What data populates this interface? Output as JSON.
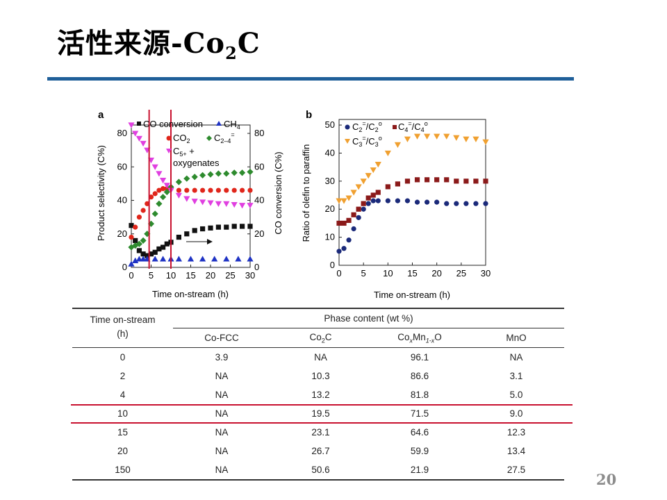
{
  "slide": {
    "title_main": "活性来源-Co",
    "title_sub": "2",
    "title_tail": "C",
    "page_number": "20",
    "rule_color": "#1f5f99",
    "highlight_color": "#c8102e"
  },
  "chart_data": [
    {
      "panel": "a",
      "type": "scatter",
      "xlabel": "Time on-stream (h)",
      "ylabel": "Product selectivity (C%)",
      "ylabel_right": "CO conversion (C%)",
      "xlim": [
        0,
        30
      ],
      "ylim": [
        0,
        85
      ],
      "xticks": [
        0,
        5,
        10,
        15,
        20,
        25,
        30
      ],
      "yticks": [
        0,
        20,
        40,
        60,
        80
      ],
      "vertical_markers": [
        4.5,
        10
      ],
      "legend": [
        "CO conversion",
        "CH4",
        "CO2",
        "C2–4=",
        "C5+ + oxygenates"
      ],
      "series": [
        {
          "name": "CO conversion",
          "color": "#111111",
          "marker": "square",
          "x": [
            0,
            1,
            2,
            3,
            4,
            5,
            6,
            7,
            8,
            9,
            10,
            12,
            14,
            16,
            18,
            20,
            22,
            24,
            26,
            28,
            30
          ],
          "y": [
            25,
            16,
            10,
            8,
            7,
            8,
            9,
            11,
            12,
            14,
            15,
            18,
            20,
            22,
            23,
            23.5,
            24,
            24,
            24.5,
            24.5,
            24.5
          ]
        },
        {
          "name": "CH4",
          "color": "#1f33c4",
          "marker": "triangle-up",
          "x": [
            0,
            1,
            2,
            3,
            4,
            6,
            8,
            10,
            12,
            15,
            18,
            21,
            24,
            27,
            30
          ],
          "y": [
            2,
            4,
            5,
            5,
            5,
            5,
            5,
            5,
            5,
            5,
            5,
            5,
            5,
            5,
            5
          ]
        },
        {
          "name": "CO2",
          "color": "#e0261b",
          "marker": "circle",
          "x": [
            0,
            1,
            2,
            3,
            4,
            5,
            6,
            7,
            8,
            9,
            10,
            12,
            14,
            16,
            18,
            20,
            22,
            24,
            26,
            28,
            30
          ],
          "y": [
            18,
            24,
            30,
            34,
            38,
            42,
            44,
            46,
            47,
            47,
            47,
            46,
            46,
            46,
            46,
            46,
            46,
            46,
            46,
            46,
            46
          ]
        },
        {
          "name": "C2–4=",
          "color": "#2e8b2e",
          "marker": "diamond",
          "x": [
            0,
            1,
            2,
            3,
            4,
            5,
            6,
            7,
            8,
            9,
            10,
            12,
            14,
            16,
            18,
            20,
            22,
            24,
            26,
            28,
            30
          ],
          "y": [
            12,
            13,
            14,
            16,
            20,
            26,
            32,
            38,
            42,
            45,
            48,
            51,
            53,
            54,
            55,
            55.5,
            56,
            56,
            56.5,
            56.5,
            57
          ]
        },
        {
          "name": "C5+ + oxygenates",
          "color": "#e040e0",
          "marker": "triangle-down",
          "x": [
            0,
            1,
            2,
            3,
            4,
            5,
            6,
            7,
            8,
            9,
            10,
            12,
            14,
            16,
            18,
            20,
            22,
            24,
            26,
            28,
            30
          ],
          "y": [
            85,
            80,
            77,
            74,
            70,
            64,
            60,
            56,
            52,
            49,
            46,
            43,
            41,
            39.5,
            39,
            38.5,
            38,
            38,
            37.5,
            37,
            37
          ]
        }
      ]
    },
    {
      "panel": "b",
      "type": "scatter",
      "xlabel": "Time on-stream (h)",
      "ylabel": "Ratio of olefin to paraffin",
      "xlim": [
        0,
        30
      ],
      "ylim": [
        0,
        52
      ],
      "xticks": [
        0,
        5,
        10,
        15,
        20,
        25,
        30
      ],
      "yticks": [
        0,
        10,
        20,
        30,
        40,
        50
      ],
      "legend": [
        "C2=/C2o",
        "C4=/C4o",
        "C3=/C3o"
      ],
      "series": [
        {
          "name": "C2=/C2o",
          "color": "#1b2a7a",
          "marker": "circle",
          "x": [
            0,
            1,
            2,
            3,
            4,
            5,
            6,
            7,
            8,
            10,
            12,
            14,
            16,
            18,
            20,
            22,
            24,
            26,
            28,
            30
          ],
          "y": [
            5,
            6,
            9,
            13,
            17,
            20,
            22,
            23,
            23,
            23,
            23,
            23,
            22.5,
            22.5,
            22.5,
            22,
            22,
            22,
            22,
            22
          ]
        },
        {
          "name": "C4=/C4o",
          "color": "#8b1a1a",
          "marker": "square",
          "x": [
            0,
            1,
            2,
            3,
            4,
            5,
            6,
            7,
            8,
            10,
            12,
            14,
            16,
            18,
            20,
            22,
            24,
            26,
            28,
            30
          ],
          "y": [
            15,
            15,
            16,
            18,
            20,
            22,
            24,
            25,
            26,
            28,
            29,
            30,
            30.5,
            30.5,
            30.5,
            30.5,
            30,
            30,
            30,
            30
          ]
        },
        {
          "name": "C3=/C3o",
          "color": "#f0a030",
          "marker": "triangle-down",
          "x": [
            0,
            1,
            2,
            3,
            4,
            5,
            6,
            7,
            8,
            10,
            12,
            14,
            16,
            18,
            20,
            22,
            24,
            26,
            28,
            30
          ],
          "y": [
            23,
            23,
            24,
            26,
            28,
            30,
            32,
            34,
            36,
            40,
            43,
            45,
            46,
            46,
            46,
            46,
            45.5,
            45,
            45,
            44
          ]
        }
      ]
    }
  ],
  "panel_labels": {
    "a": "a",
    "b": "b"
  },
  "axis_ticks": {
    "a_x": [
      "0",
      "5",
      "10",
      "15",
      "20",
      "25",
      "30"
    ],
    "a_yl": [
      "0",
      "20",
      "40",
      "60",
      "80"
    ],
    "a_yr": [
      "0",
      "20",
      "40",
      "60",
      "80"
    ],
    "b_x": [
      "0",
      "5",
      "10",
      "15",
      "20",
      "25",
      "30"
    ],
    "b_y": [
      "0",
      "10",
      "20",
      "30",
      "40",
      "50"
    ]
  },
  "legend_a": {
    "co_conversion": "CO conversion",
    "ch4": "CH",
    "ch4_sub": "4",
    "co2": "CO",
    "co2_sub": "2",
    "c24": "C",
    "c24_sub": "2–4",
    "c24_sup": "=",
    "c5": "C",
    "c5_sub": "5+",
    "c5_plus": " +",
    "oxygenates": "oxygenates"
  },
  "legend_b": {
    "c2": "C",
    "c2_sub": "2",
    "c2_sup": "=",
    "c2_slash": "/C",
    "c2_sub2": "2",
    "c2_sup2": "o",
    "c4": "C",
    "c4_sub": "4",
    "c4_sup": "=",
    "c4_slash": "/C",
    "c4_sub2": "4",
    "c4_sup2": "o",
    "c3": "C",
    "c3_sub": "3",
    "c3_sup": "=",
    "c3_slash": "/C",
    "c3_sub2": "3",
    "c3_sup2": "o"
  },
  "table": {
    "col1_header_line1": "Time on-stream",
    "col1_header_line2": "(h)",
    "group_header": "Phase content (wt %)",
    "col_cofcc": "Co-FCC",
    "col_co2c_a": "Co",
    "col_co2c_sub": "2",
    "col_co2c_b": "C",
    "col_comn_a": "Co",
    "col_comn_sub1": "x",
    "col_comn_b": "Mn",
    "col_comn_sub2": "1-x",
    "col_comn_c": "O",
    "col_mno": "MnO",
    "rows": [
      [
        "0",
        "3.9",
        "NA",
        "96.1",
        "NA"
      ],
      [
        "2",
        "NA",
        "10.3",
        "86.6",
        "3.1"
      ],
      [
        "4",
        "NA",
        "13.2",
        "81.8",
        "5.0"
      ],
      [
        "10",
        "NA",
        "19.5",
        "71.5",
        "9.0"
      ],
      [
        "15",
        "NA",
        "23.1",
        "64.6",
        "12.3"
      ],
      [
        "20",
        "NA",
        "26.7",
        "59.9",
        "13.4"
      ],
      [
        "150",
        "NA",
        "50.6",
        "21.9",
        "27.5"
      ]
    ]
  }
}
